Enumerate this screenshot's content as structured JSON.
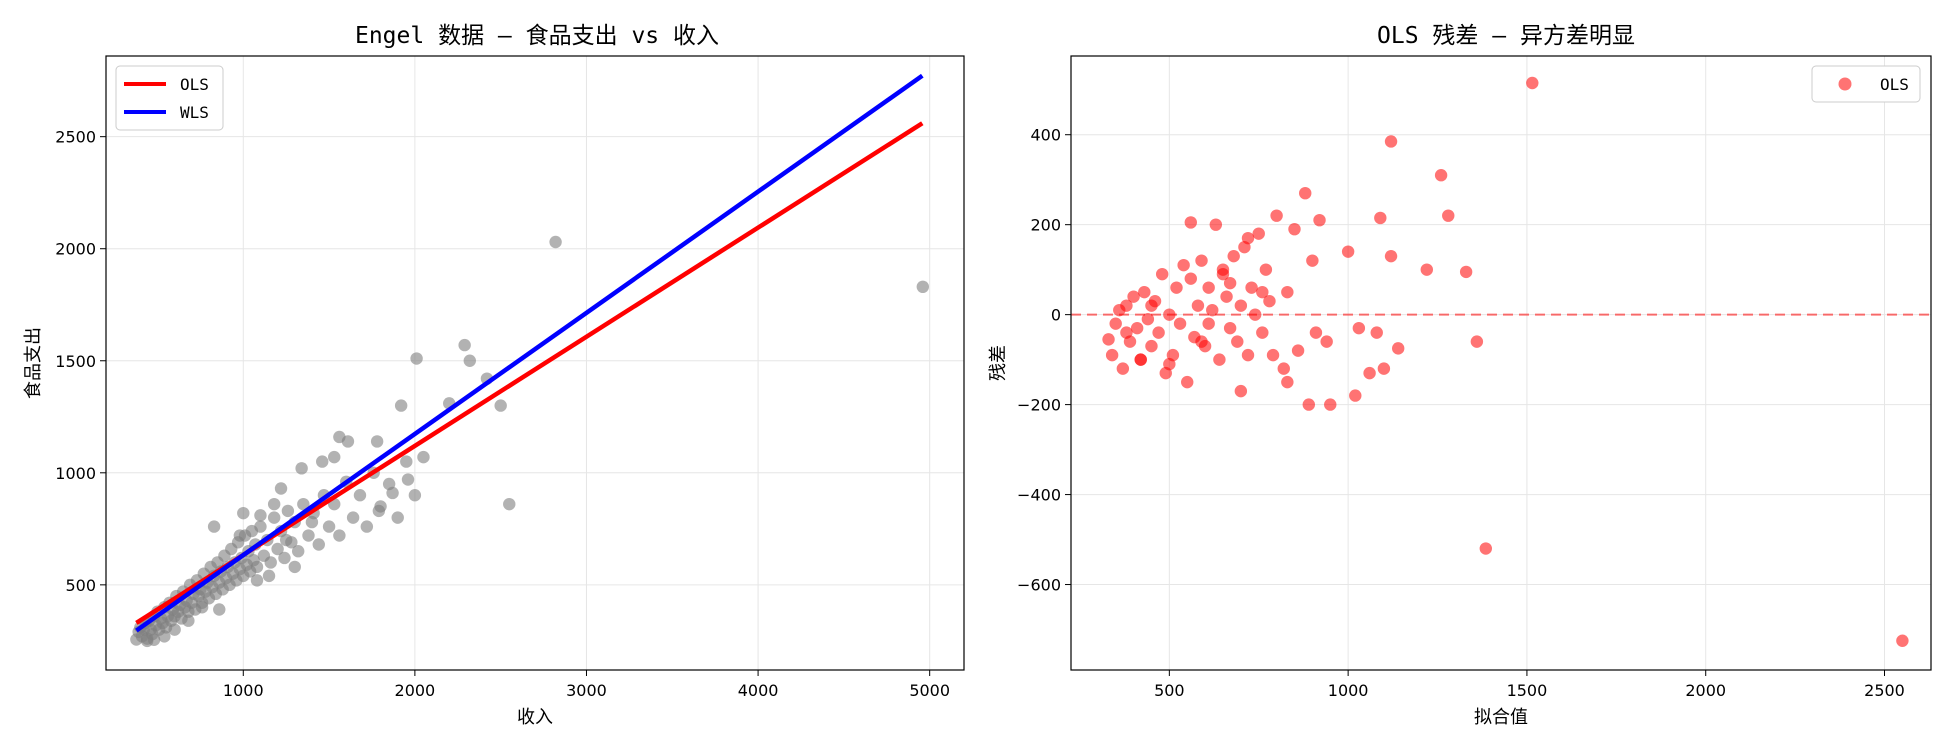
{
  "chart_data": [
    {
      "type": "scatter",
      "title": "Engel 数据 — 食品支出 vs 收入",
      "xlabel": "收入",
      "ylabel": "食品支出",
      "xlim": [
        200,
        5200
      ],
      "ylim": [
        120,
        2860
      ],
      "xticks": [
        1000,
        2000,
        3000,
        4000,
        5000
      ],
      "yticks": [
        500,
        1000,
        1500,
        2000,
        2500
      ],
      "grid": true,
      "legend_position": "top-left",
      "point_color": "#7f7f7f",
      "points": [
        [
          377,
          256
        ],
        [
          390,
          290
        ],
        [
          400,
          310
        ],
        [
          410,
          270
        ],
        [
          420,
          300
        ],
        [
          430,
          330
        ],
        [
          440,
          260
        ],
        [
          450,
          340
        ],
        [
          460,
          300
        ],
        [
          470,
          280
        ],
        [
          480,
          360
        ],
        [
          490,
          320
        ],
        [
          500,
          380
        ],
        [
          510,
          300
        ],
        [
          520,
          350
        ],
        [
          530,
          330
        ],
        [
          540,
          400
        ],
        [
          550,
          310
        ],
        [
          560,
          360
        ],
        [
          570,
          420
        ],
        [
          580,
          340
        ],
        [
          590,
          390
        ],
        [
          600,
          360
        ],
        [
          610,
          450
        ],
        [
          620,
          380
        ],
        [
          630,
          410
        ],
        [
          640,
          350
        ],
        [
          650,
          470
        ],
        [
          660,
          400
        ],
        [
          670,
          430
        ],
        [
          680,
          380
        ],
        [
          690,
          500
        ],
        [
          700,
          420
        ],
        [
          710,
          460
        ],
        [
          720,
          390
        ],
        [
          730,
          520
        ],
        [
          740,
          450
        ],
        [
          750,
          480
        ],
        [
          760,
          420
        ],
        [
          770,
          550
        ],
        [
          780,
          470
        ],
        [
          790,
          510
        ],
        [
          800,
          440
        ],
        [
          810,
          580
        ],
        [
          820,
          490
        ],
        [
          830,
          540
        ],
        [
          840,
          460
        ],
        [
          850,
          600
        ],
        [
          860,
          510
        ],
        [
          870,
          560
        ],
        [
          880,
          480
        ],
        [
          890,
          630
        ],
        [
          900,
          530
        ],
        [
          910,
          580
        ],
        [
          920,
          500
        ],
        [
          930,
          660
        ],
        [
          940,
          550
        ],
        [
          950,
          600
        ],
        [
          960,
          520
        ],
        [
          970,
          690
        ],
        [
          980,
          570
        ],
        [
          990,
          620
        ],
        [
          1000,
          540
        ],
        [
          1010,
          720
        ],
        [
          1020,
          590
        ],
        [
          1030,
          650
        ],
        [
          1040,
          560
        ],
        [
          1050,
          740
        ],
        [
          1060,
          610
        ],
        [
          1070,
          680
        ],
        [
          1080,
          580
        ],
        [
          1100,
          760
        ],
        [
          1120,
          630
        ],
        [
          1140,
          700
        ],
        [
          1160,
          600
        ],
        [
          1180,
          800
        ],
        [
          1200,
          660
        ],
        [
          1220,
          740
        ],
        [
          1240,
          620
        ],
        [
          1260,
          830
        ],
        [
          1280,
          690
        ],
        [
          1300,
          780
        ],
        [
          1320,
          650
        ],
        [
          1350,
          860
        ],
        [
          1380,
          720
        ],
        [
          1410,
          820
        ],
        [
          1440,
          680
        ],
        [
          1470,
          900
        ],
        [
          1500,
          760
        ],
        [
          1530,
          860
        ],
        [
          1560,
          720
        ],
        [
          1600,
          960
        ],
        [
          1640,
          800
        ],
        [
          1680,
          900
        ],
        [
          1720,
          760
        ],
        [
          1760,
          1000
        ],
        [
          1800,
          850
        ],
        [
          1850,
          950
        ],
        [
          1900,
          800
        ],
        [
          1950,
          1050
        ],
        [
          2000,
          900
        ],
        [
          1560,
          1160
        ],
        [
          1610,
          1140
        ],
        [
          1780,
          1140
        ],
        [
          1920,
          1300
        ],
        [
          2010,
          1510
        ],
        [
          2290,
          1570
        ],
        [
          2320,
          1500
        ],
        [
          2420,
          1420
        ],
        [
          2500,
          1300
        ],
        [
          2550,
          860
        ],
        [
          2820,
          2030
        ],
        [
          4960,
          1830
        ],
        [
          1220,
          930
        ],
        [
          1340,
          1020
        ],
        [
          1460,
          1050
        ],
        [
          1530,
          1070
        ],
        [
          2050,
          1070
        ],
        [
          2200,
          1310
        ],
        [
          1790,
          830
        ],
        [
          1870,
          910
        ],
        [
          1960,
          970
        ],
        [
          1300,
          580
        ],
        [
          1150,
          540
        ],
        [
          860,
          390
        ],
        [
          760,
          400
        ],
        [
          680,
          340
        ],
        [
          600,
          300
        ],
        [
          540,
          270
        ],
        [
          480,
          255
        ],
        [
          440,
          250
        ],
        [
          1080,
          520
        ],
        [
          1250,
          700
        ],
        [
          1400,
          780
        ],
        [
          980,
          720
        ],
        [
          1100,
          810
        ],
        [
          1180,
          860
        ],
        [
          830,
          760
        ],
        [
          1000,
          820
        ]
      ],
      "lines": [
        {
          "name": "OLS",
          "color": "#ff0000",
          "x": [
            377,
            4957
          ],
          "y": [
            330,
            2560
          ]
        },
        {
          "name": "WLS",
          "color": "#0000ff",
          "x": [
            377,
            4957
          ],
          "y": [
            296,
            2772
          ]
        }
      ]
    },
    {
      "type": "scatter",
      "title": "OLS 残差 — 异方差明显",
      "xlabel": "拟合值",
      "ylabel": "残差",
      "xlim": [
        225,
        2630
      ],
      "ylim": [
        -790,
        575
      ],
      "xticks": [
        500,
        1000,
        1500,
        2000,
        2500
      ],
      "yticks": [
        -600,
        -400,
        -200,
        0,
        200,
        400
      ],
      "grid": true,
      "legend_position": "top-right",
      "zero_line": {
        "y": 0,
        "color": "#ff0000",
        "style": "dashed"
      },
      "series": [
        {
          "name": "OLS",
          "color": "#ff0000",
          "points": [
            [
              330,
              -55
            ],
            [
              340,
              -90
            ],
            [
              350,
              -20
            ],
            [
              360,
              10
            ],
            [
              370,
              -120
            ],
            [
              380,
              20
            ],
            [
              390,
              -60
            ],
            [
              400,
              40
            ],
            [
              410,
              -30
            ],
            [
              420,
              -100
            ],
            [
              430,
              50
            ],
            [
              440,
              -10
            ],
            [
              450,
              -70
            ],
            [
              460,
              30
            ],
            [
              470,
              -40
            ],
            [
              480,
              90
            ],
            [
              490,
              -130
            ],
            [
              500,
              0
            ],
            [
              510,
              -90
            ],
            [
              520,
              60
            ],
            [
              530,
              -20
            ],
            [
              540,
              110
            ],
            [
              550,
              -150
            ],
            [
              560,
              80
            ],
            [
              570,
              -50
            ],
            [
              580,
              20
            ],
            [
              590,
              120
            ],
            [
              600,
              -70
            ],
            [
              610,
              60
            ],
            [
              620,
              10
            ],
            [
              630,
              200
            ],
            [
              640,
              -100
            ],
            [
              650,
              90
            ],
            [
              660,
              40
            ],
            [
              670,
              -30
            ],
            [
              680,
              130
            ],
            [
              690,
              -60
            ],
            [
              700,
              20
            ],
            [
              710,
              150
            ],
            [
              720,
              -90
            ],
            [
              730,
              60
            ],
            [
              740,
              0
            ],
            [
              750,
              180
            ],
            [
              760,
              -40
            ],
            [
              770,
              100
            ],
            [
              780,
              30
            ],
            [
              800,
              220
            ],
            [
              820,
              -120
            ],
            [
              830,
              50
            ],
            [
              850,
              190
            ],
            [
              860,
              -80
            ],
            [
              880,
              270
            ],
            [
              890,
              -200
            ],
            [
              900,
              120
            ],
            [
              920,
              210
            ],
            [
              940,
              -60
            ],
            [
              1000,
              140
            ],
            [
              1020,
              -180
            ],
            [
              1030,
              -30
            ],
            [
              1060,
              -130
            ],
            [
              1080,
              -40
            ],
            [
              1090,
              215
            ],
            [
              1100,
              -120
            ],
            [
              1120,
              130
            ],
            [
              1120,
              385
            ],
            [
              1140,
              -75
            ],
            [
              1220,
              100
            ],
            [
              1260,
              310
            ],
            [
              1280,
              220
            ],
            [
              1330,
              95
            ],
            [
              1360,
              -60
            ],
            [
              1385,
              -520
            ],
            [
              1515,
              515
            ],
            [
              2550,
              -725
            ],
            [
              560,
              205
            ],
            [
              420,
              -100
            ],
            [
              380,
              -40
            ],
            [
              450,
              20
            ],
            [
              500,
              -110
            ],
            [
              590,
              -60
            ],
            [
              650,
              100
            ],
            [
              700,
              -170
            ],
            [
              760,
              50
            ],
            [
              830,
              -150
            ],
            [
              910,
              -40
            ],
            [
              950,
              -200
            ],
            [
              610,
              -20
            ],
            [
              670,
              70
            ],
            [
              720,
              170
            ],
            [
              790,
              -90
            ]
          ]
        }
      ]
    }
  ]
}
